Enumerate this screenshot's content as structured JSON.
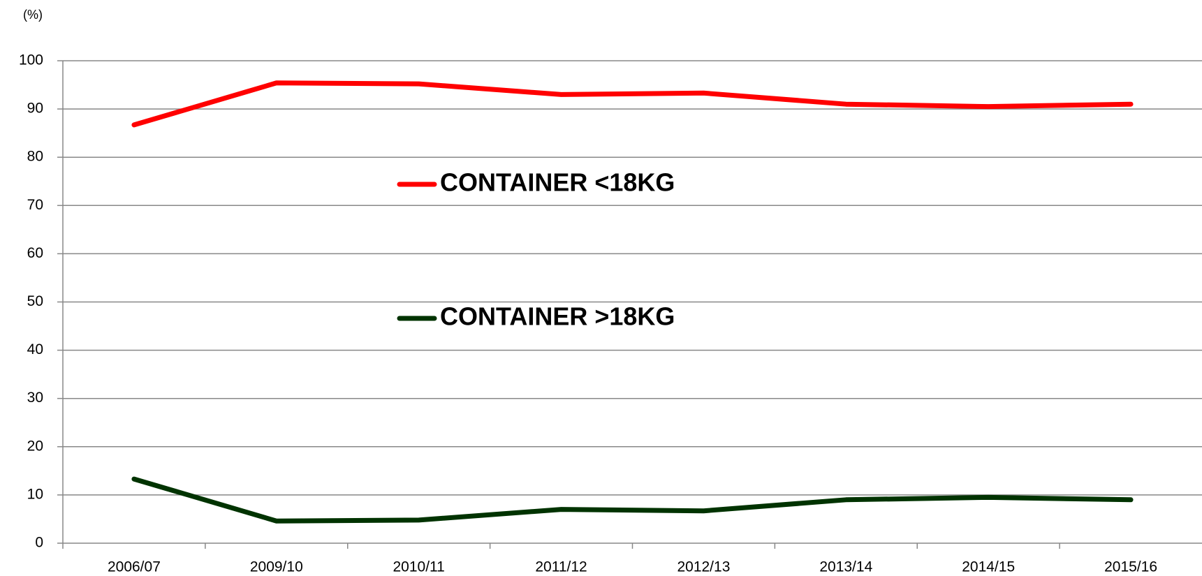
{
  "chart_data": {
    "type": "line",
    "y_label": "(%)",
    "categories": [
      "2006/07",
      "2009/10",
      "2010/11",
      "2011/12",
      "2012/13",
      "2013/14",
      "2014/15",
      "2015/16"
    ],
    "series": [
      {
        "name": "CONTAINER <18KG",
        "color": "#ff0000",
        "values": [
          86.7,
          95.4,
          95.2,
          93.0,
          93.3,
          91.0,
          90.5,
          91.0
        ]
      },
      {
        "name": "CONTAINER >18KG",
        "color": "#003300",
        "values": [
          13.3,
          4.6,
          4.8,
          7.0,
          6.7,
          9.0,
          9.5,
          9.0
        ]
      }
    ],
    "ylim": [
      0,
      100
    ],
    "yticks": [
      0,
      10,
      20,
      30,
      40,
      50,
      60,
      70,
      80,
      90,
      100
    ],
    "grid": true,
    "legend": "inside"
  }
}
